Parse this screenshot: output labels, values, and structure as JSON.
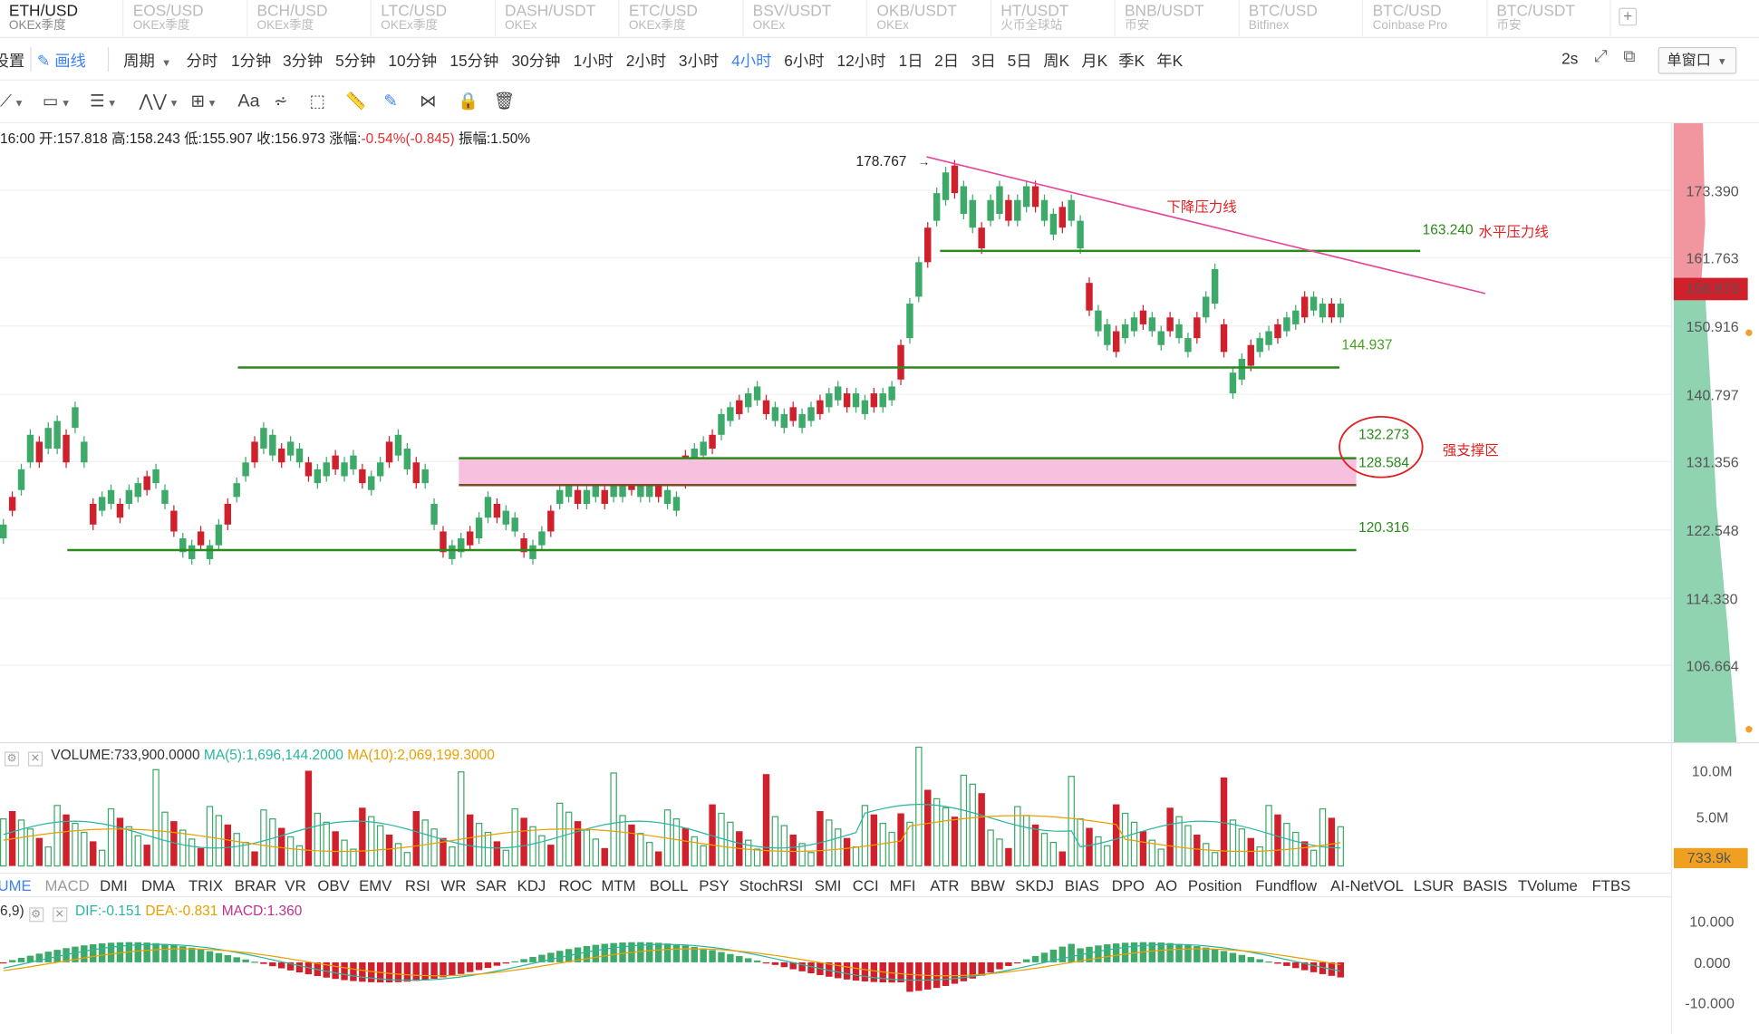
{
  "tabs": [
    {
      "symbol": "ETH/USD",
      "exchange": "OKEx季度",
      "active": true
    },
    {
      "symbol": "EOS/USD",
      "exchange": "OKEx季度",
      "active": false
    },
    {
      "symbol": "BCH/USD",
      "exchange": "OKEx季度",
      "active": false
    },
    {
      "symbol": "LTC/USD",
      "exchange": "OKEx季度",
      "active": false
    },
    {
      "symbol": "DASH/USDT",
      "exchange": "OKEx",
      "active": false
    },
    {
      "symbol": "ETC/USD",
      "exchange": "OKEx季度",
      "active": false
    },
    {
      "symbol": "BSV/USDT",
      "exchange": "OKEx",
      "active": false
    },
    {
      "symbol": "OKB/USDT",
      "exchange": "OKEx",
      "active": false
    },
    {
      "symbol": "HT/USDT",
      "exchange": "火币全球站",
      "active": false
    },
    {
      "symbol": "BNB/USDT",
      "exchange": "币安",
      "active": false
    },
    {
      "symbol": "BTC/USD",
      "exchange": "Bitfinex",
      "active": false
    },
    {
      "symbol": "BTC/USD",
      "exchange": "Coinbase Pro",
      "active": false
    },
    {
      "symbol": "BTC/USDT",
      "exchange": "币安",
      "active": false
    }
  ],
  "toolbar": {
    "settings": "设置",
    "draw": "画线",
    "period": "周期",
    "periods": [
      "分时",
      "1分钟",
      "3分钟",
      "5分钟",
      "10分钟",
      "15分钟",
      "30分钟",
      "1小时",
      "2小时",
      "3小时",
      "4小时",
      "6小时",
      "12小时",
      "1日",
      "2日",
      "3日",
      "5日",
      "周K",
      "月K",
      "季K",
      "年K"
    ],
    "active_period": "4小时",
    "refresh": "2s",
    "window": "单窗口"
  },
  "drawtools": [
    "line-tool-icon",
    "rect-tool-icon",
    "parallel-tool-icon",
    "wave-tool-icon",
    "measure-tool-icon",
    "text-tool",
    "fib-tool-icon",
    "pattern-tool-icon",
    "ruler-tool-icon",
    "pen-tool-icon",
    "magnet-tool-icon",
    "lock-tool-icon",
    "delete-tool-icon"
  ],
  "drawtool_text": "Aa",
  "ohlc": {
    "time": "16:00",
    "open_label": "开:",
    "open": "157.818",
    "high_label": "高:",
    "high": "158.243",
    "low_label": "低:",
    "low": "155.907",
    "close_label": "收:",
    "close": "156.973",
    "change_label": "涨幅:",
    "change": "-0.54%(-0.845)",
    "amp_label": "振幅:",
    "amp": "1.50%"
  },
  "price_axis": [
    "173.390",
    "161.763",
    "150.916",
    "140.797",
    "131.356",
    "122.548",
    "114.330",
    "106.664"
  ],
  "current_price": "156.973",
  "annotations": {
    "high_marker": "178.767",
    "downtrend_label": "下降压力线",
    "horizontal_resistance_value": "163.240",
    "horizontal_resistance_label": "水平压力线",
    "support_level": "144.937",
    "zone_top": "132.273",
    "zone_bottom": "128.584",
    "zone_label": "强支撑区",
    "bottom_level": "120.316"
  },
  "volume": {
    "label": "VOLUME:733,900.0000",
    "ma5": "MA(5):1,696,144.2000",
    "ma10": "MA(10):2,069,199.3000",
    "axis": [
      "10.0M",
      "5.0M"
    ],
    "current": "733.9k",
    "zero": "0"
  },
  "indicators": [
    "UME",
    "MACD",
    "DMI",
    "DMA",
    "TRIX",
    "BRAR",
    "VR",
    "OBV",
    "EMV",
    "RSI",
    "WR",
    "SAR",
    "KDJ",
    "ROC",
    "MTM",
    "BOLL",
    "PSY",
    "StochRSI",
    "SMI",
    "CCI",
    "MFI",
    "ATR",
    "BBW",
    "SKDJ",
    "BIAS",
    "DPO",
    "AO",
    "Position",
    "Fundflow",
    "AI-NetVOL",
    "LSUR",
    "BASIS",
    "TVolume",
    "FTBS"
  ],
  "macd": {
    "params": "6,9)",
    "dif": "DIF:-0.151",
    "dea": "DEA:-0.831",
    "macd": "MACD:1.360",
    "axis": [
      "10.000",
      "0.000",
      "-10.000"
    ]
  },
  "colors": {
    "up": "#3daa6a",
    "down": "#d0202c",
    "accent": "#3b82f6",
    "support": "#2a8a1a",
    "trend": "#e8449a",
    "zone": "#f7c0de"
  }
}
